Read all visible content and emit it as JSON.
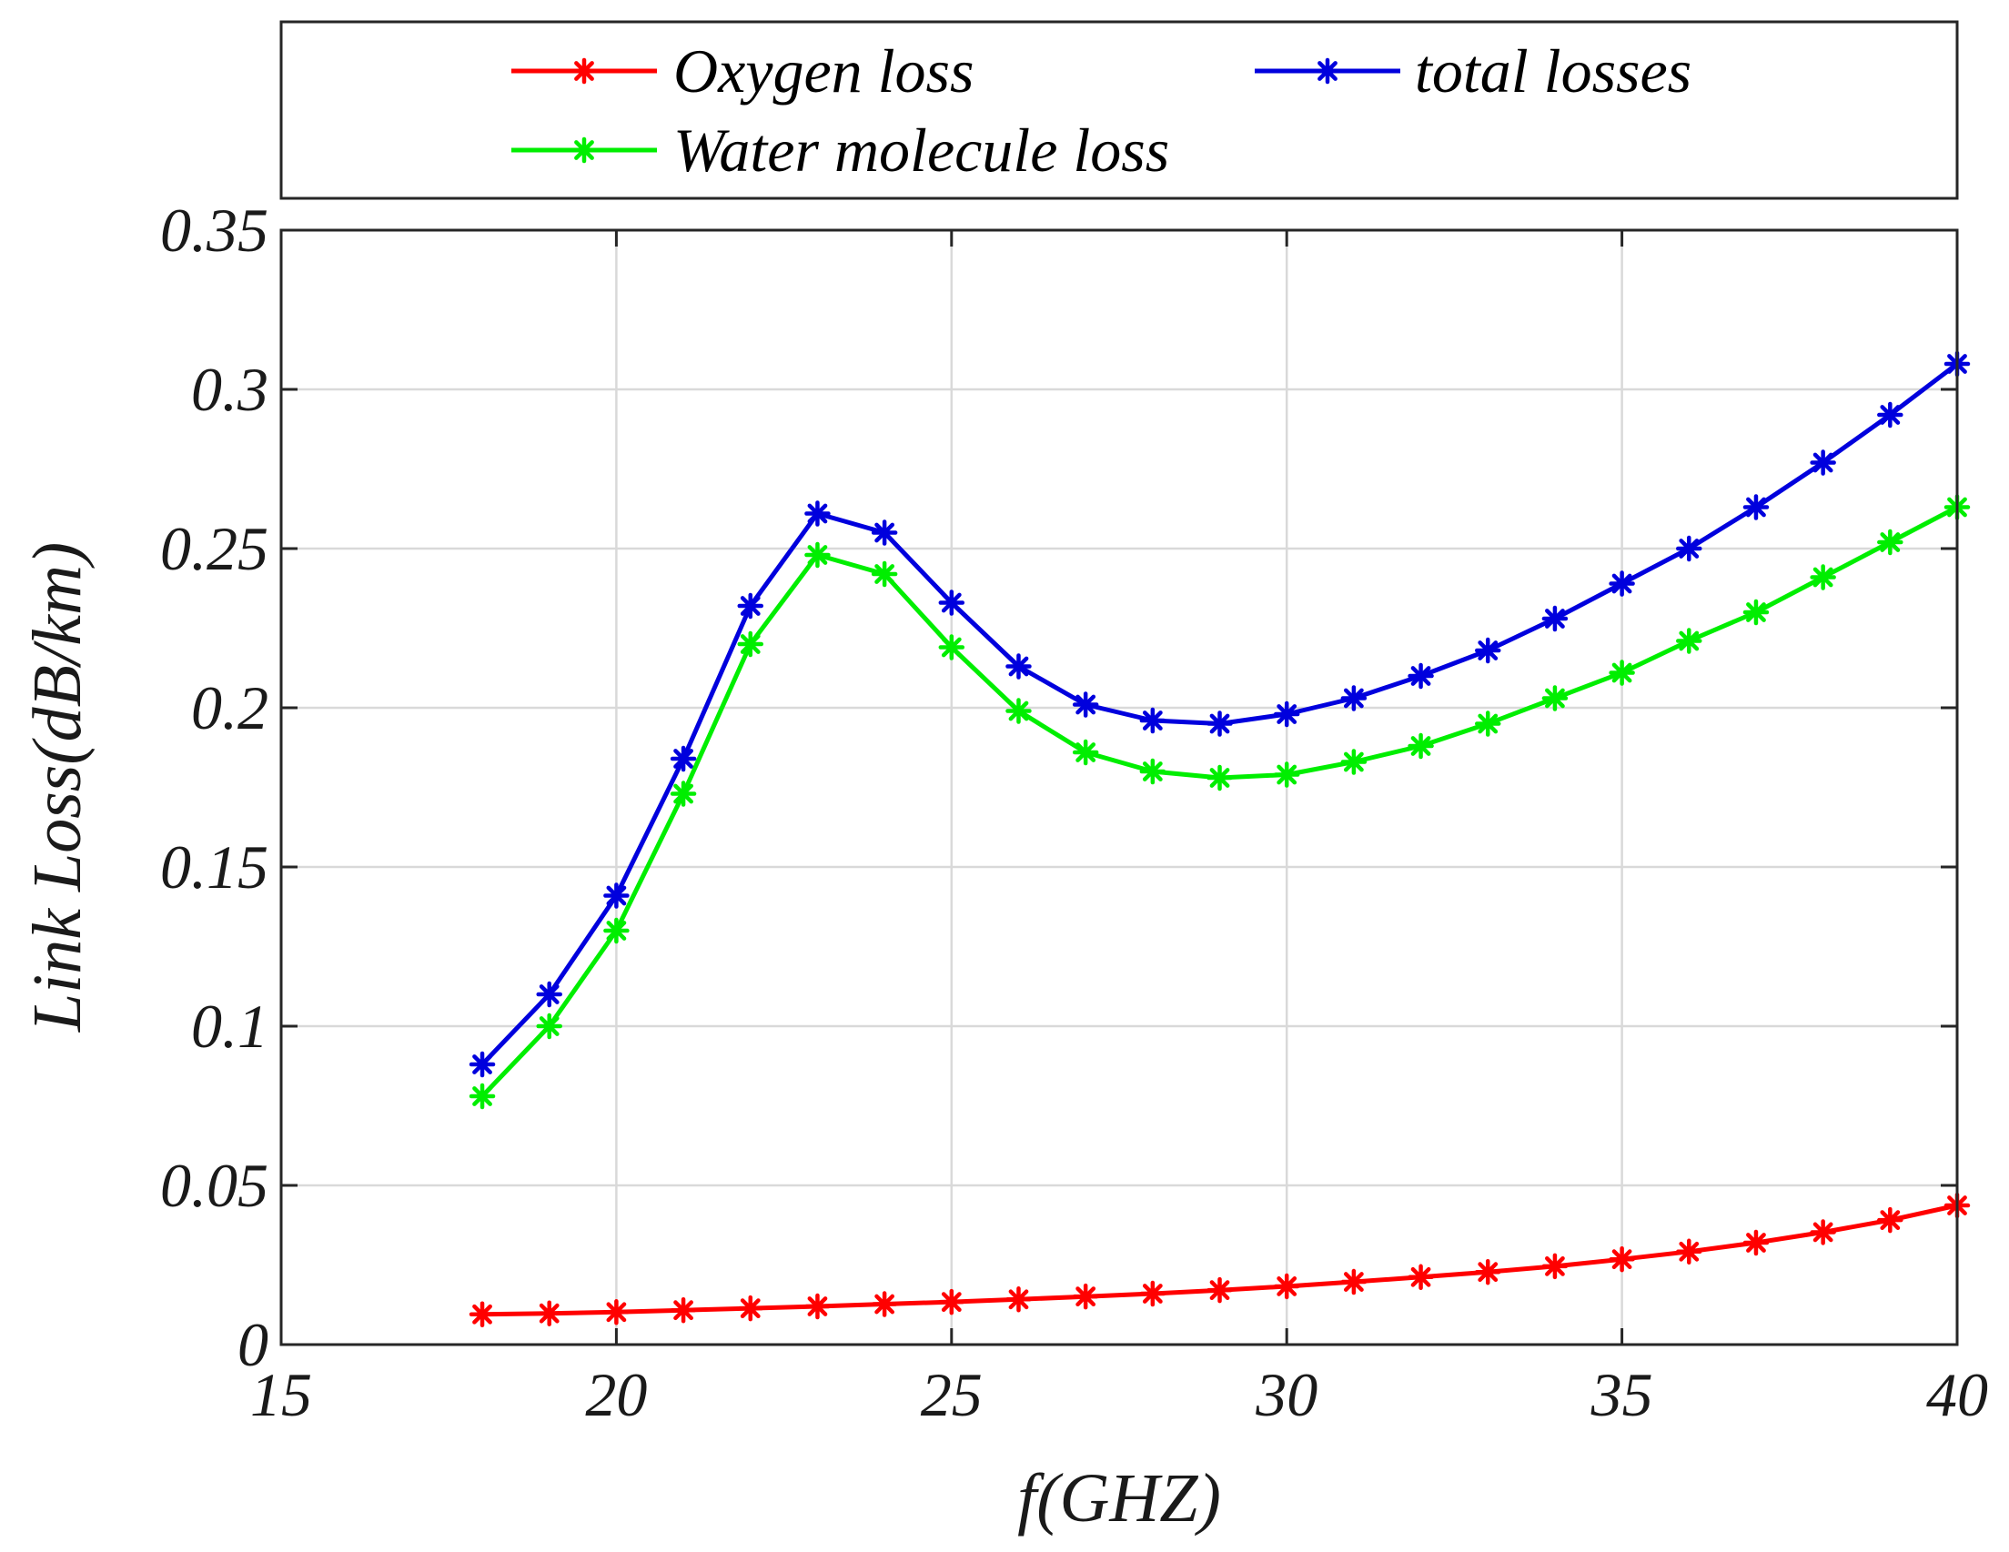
{
  "chart_data": {
    "type": "line",
    "title": "",
    "xlabel": "f(GHZ)",
    "ylabel": "Link Loss(dB/km)",
    "xlim": [
      15,
      40
    ],
    "ylim": [
      0,
      0.35
    ],
    "grid": true,
    "x_ticks": [
      15,
      20,
      25,
      30,
      35,
      40
    ],
    "y_ticks": [
      0,
      0.05,
      0.1,
      0.15,
      0.2,
      0.25,
      0.3,
      0.35
    ],
    "x_tick_labels": [
      "15",
      "20",
      "25",
      "30",
      "35",
      "40"
    ],
    "y_tick_labels": [
      "0",
      "0.05",
      "0.1",
      "0.15",
      "0.2",
      "0.25",
      "0.3",
      "0.35"
    ],
    "legend_position": "top, outside plot",
    "x": [
      18,
      19,
      20,
      21,
      22,
      23,
      24,
      25,
      26,
      27,
      28,
      29,
      30,
      31,
      32,
      33,
      34,
      35,
      36,
      37,
      38,
      39,
      40
    ],
    "series": [
      {
        "name": "Oxygen loss",
        "color": "#ff0000",
        "marker": "asterisk",
        "values": [
          0.0095,
          0.0098,
          0.0102,
          0.0108,
          0.0114,
          0.012,
          0.0127,
          0.0134,
          0.0142,
          0.0151,
          0.016,
          0.0171,
          0.0183,
          0.0197,
          0.0212,
          0.0228,
          0.0246,
          0.0268,
          0.0292,
          0.032,
          0.0353,
          0.0391,
          0.0437
        ]
      },
      {
        "name": "total losses",
        "color": "#0000dd",
        "marker": "asterisk",
        "values": [
          0.088,
          0.11,
          0.141,
          0.184,
          0.232,
          0.261,
          0.255,
          0.233,
          0.213,
          0.201,
          0.196,
          0.195,
          0.198,
          0.203,
          0.21,
          0.218,
          0.228,
          0.239,
          0.25,
          0.263,
          0.277,
          0.292,
          0.308
        ]
      },
      {
        "name": "Water molecule loss",
        "color": "#00ee00",
        "marker": "asterisk",
        "values": [
          0.078,
          0.1,
          0.13,
          0.173,
          0.22,
          0.248,
          0.242,
          0.219,
          0.199,
          0.186,
          0.18,
          0.178,
          0.179,
          0.183,
          0.188,
          0.195,
          0.203,
          0.211,
          0.221,
          0.23,
          0.241,
          0.252,
          0.263
        ]
      }
    ]
  }
}
